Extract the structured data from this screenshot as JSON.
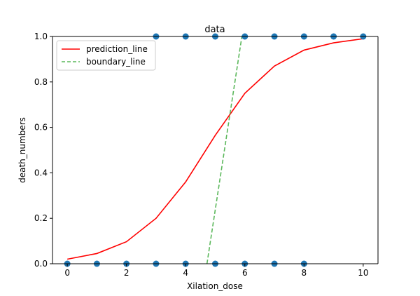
{
  "chart_data": {
    "type": "scatter",
    "title": "data",
    "xlabel": "Xilation_dose",
    "ylabel": "death_numbers",
    "xlim": [
      -0.5,
      10.5
    ],
    "ylim": [
      0.0,
      1.0
    ],
    "xticks": [
      0,
      2,
      4,
      6,
      8,
      10
    ],
    "yticks": [
      0.0,
      0.2,
      0.4,
      0.6,
      0.8,
      1.0
    ],
    "xtick_labels": [
      "0",
      "2",
      "4",
      "6",
      "8",
      "10"
    ],
    "ytick_labels": [
      "0.0",
      "0.2",
      "0.4",
      "0.6",
      "0.8",
      "1.0"
    ],
    "grid": false,
    "legend_position": "top-left",
    "points": {
      "color": "#1f77b4",
      "data": [
        {
          "x": 0,
          "y": 0
        },
        {
          "x": 1,
          "y": 0
        },
        {
          "x": 2,
          "y": 0
        },
        {
          "x": 3,
          "y": 0
        },
        {
          "x": 4,
          "y": 0
        },
        {
          "x": 5,
          "y": 0
        },
        {
          "x": 6,
          "y": 0
        },
        {
          "x": 7,
          "y": 0
        },
        {
          "x": 8,
          "y": 0
        },
        {
          "x": 3,
          "y": 1
        },
        {
          "x": 4,
          "y": 1
        },
        {
          "x": 5,
          "y": 1
        },
        {
          "x": 6,
          "y": 1
        },
        {
          "x": 7,
          "y": 1
        },
        {
          "x": 8,
          "y": 1
        },
        {
          "x": 9,
          "y": 1
        },
        {
          "x": 10,
          "y": 1
        }
      ]
    },
    "series": [
      {
        "name": "prediction_line",
        "color": "#ff0000",
        "style": "solid",
        "x": [
          0,
          1,
          2,
          3,
          4,
          5,
          6,
          7,
          8,
          9,
          10
        ],
        "y": [
          0.02,
          0.045,
          0.097,
          0.2,
          0.36,
          0.565,
          0.75,
          0.87,
          0.94,
          0.972,
          0.99
        ]
      },
      {
        "name": "boundary_line",
        "color": "#5cb85c",
        "style": "dashed",
        "x": [
          4.72,
          5.9
        ],
        "y": [
          0.0,
          1.0
        ]
      }
    ]
  }
}
